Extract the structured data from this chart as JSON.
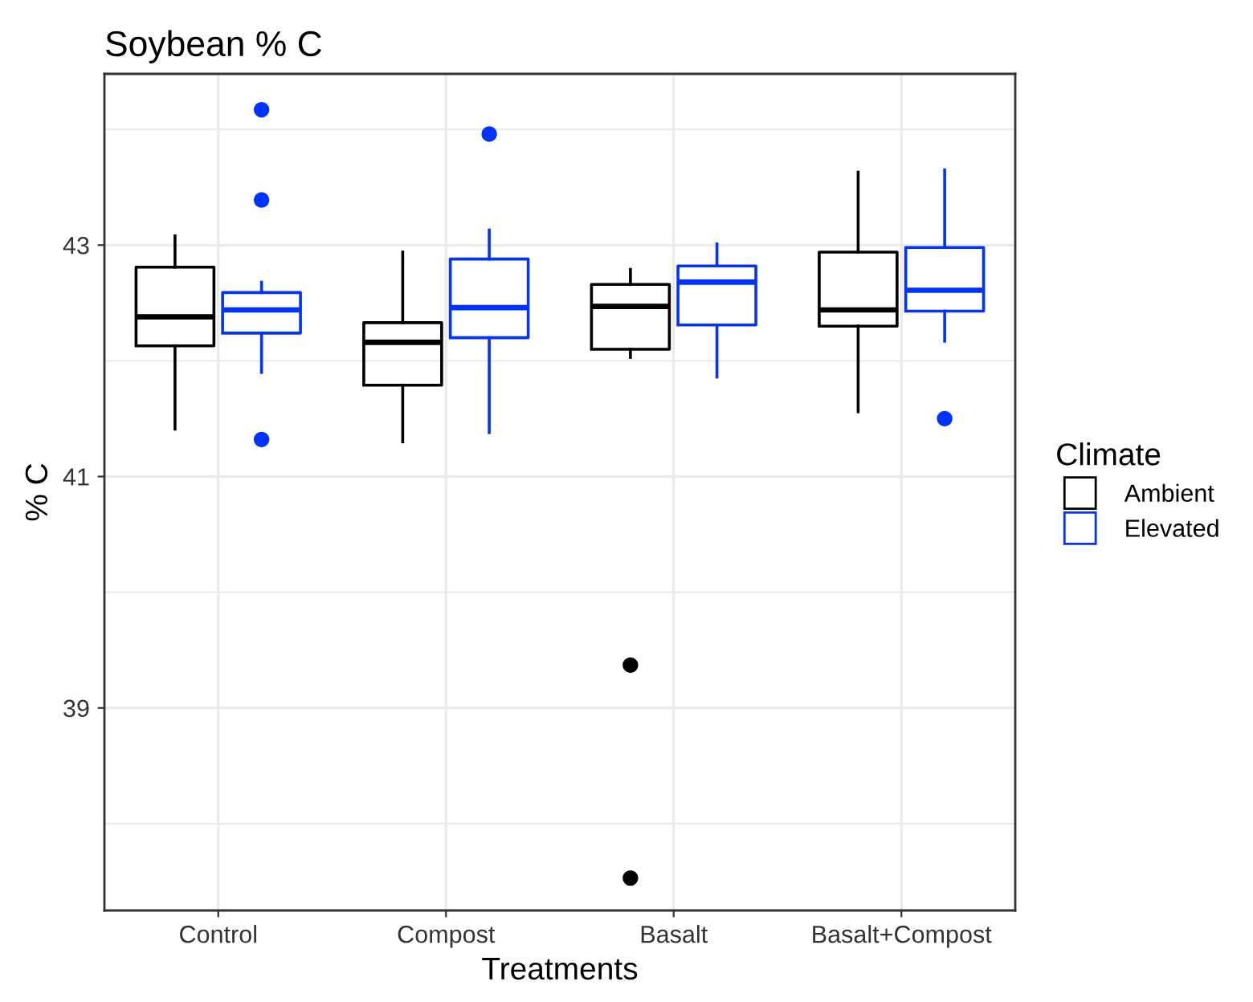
{
  "chart_data": {
    "type": "box",
    "title": "Soybean % C",
    "xlabel": "Treatments",
    "ylabel": "% C",
    "legend_title": "Climate",
    "legend": "right",
    "grid": true,
    "categories": [
      "Control",
      "Compost",
      "Basalt",
      "Basalt+Compost"
    ],
    "ylim": [
      37.25,
      44.48
    ],
    "yticks": [
      {
        "value": 38,
        "label": null
      },
      39,
      {
        "value": 40,
        "label": null
      },
      41,
      {
        "value": 42,
        "label": null
      },
      43,
      {
        "value": 44,
        "label": null
      }
    ],
    "series": [
      {
        "name": "Ambient",
        "color": "#000000",
        "boxes": [
          {
            "low": 41.41,
            "q1": 42.13,
            "median": 42.38,
            "q3": 42.81,
            "high": 43.08
          },
          {
            "low": 41.3,
            "q1": 41.79,
            "median": 42.16,
            "q3": 42.33,
            "high": 42.94
          },
          {
            "low": 42.03,
            "q1": 42.1,
            "median": 42.47,
            "q3": 42.66,
            "high": 42.79,
            "outliers": [
              39.37,
              37.53
            ]
          },
          {
            "low": 41.56,
            "q1": 42.3,
            "median": 42.44,
            "q3": 42.94,
            "high": 43.63
          }
        ]
      },
      {
        "name": "Elevated",
        "color": "#0033ff",
        "boxes": [
          {
            "low": 41.9,
            "q1": 42.24,
            "median": 42.44,
            "q3": 42.59,
            "high": 42.68,
            "outliers": [
              44.17,
              43.39,
              41.32
            ]
          },
          {
            "low": 41.38,
            "q1": 42.2,
            "median": 42.46,
            "q3": 42.88,
            "high": 43.13,
            "outliers": [
              43.96
            ]
          },
          {
            "low": 41.86,
            "q1": 42.31,
            "median": 42.68,
            "q3": 42.82,
            "high": 43.01
          },
          {
            "low": 42.17,
            "q1": 42.43,
            "median": 42.61,
            "q3": 42.98,
            "high": 43.65,
            "outliers": [
              41.5
            ]
          }
        ]
      }
    ]
  }
}
